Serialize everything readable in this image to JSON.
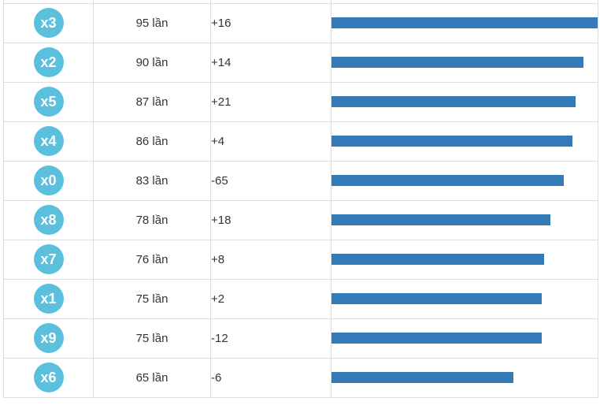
{
  "colors": {
    "badge": "#5bc0de",
    "bar": "#337ab7",
    "border": "#dddddd",
    "text": "#333333",
    "page_background": "#ffffff"
  },
  "table": {
    "max_count": 95,
    "count_unit": "lần",
    "rows": [
      {
        "label": "x3",
        "count": 95,
        "count_label": "95 lần",
        "change": "+16"
      },
      {
        "label": "x2",
        "count": 90,
        "count_label": "90 lần",
        "change": "+14"
      },
      {
        "label": "x5",
        "count": 87,
        "count_label": "87 lần",
        "change": "+21"
      },
      {
        "label": "x4",
        "count": 86,
        "count_label": "86 lần",
        "change": "+4"
      },
      {
        "label": "x0",
        "count": 83,
        "count_label": "83 lần",
        "change": "-65"
      },
      {
        "label": "x8",
        "count": 78,
        "count_label": "78 lần",
        "change": "+18"
      },
      {
        "label": "x7",
        "count": 76,
        "count_label": "76 lần",
        "change": "+8"
      },
      {
        "label": "x1",
        "count": 75,
        "count_label": "75 lần",
        "change": "+2"
      },
      {
        "label": "x9",
        "count": 75,
        "count_label": "75 lần",
        "change": "-12"
      },
      {
        "label": "x6",
        "count": 65,
        "count_label": "65 lần",
        "change": "-6"
      }
    ]
  },
  "chart_data": {
    "type": "bar",
    "orientation": "horizontal",
    "categories": [
      "x3",
      "x2",
      "x5",
      "x4",
      "x0",
      "x8",
      "x7",
      "x1",
      "x9",
      "x6"
    ],
    "series": [
      {
        "name": "frequency (lần)",
        "values": [
          95,
          90,
          87,
          86,
          83,
          78,
          76,
          75,
          75,
          65
        ]
      },
      {
        "name": "change",
        "values": [
          16,
          14,
          21,
          4,
          -65,
          18,
          8,
          2,
          -12,
          -6
        ]
      }
    ],
    "value_labels": [
      "95 lần",
      "90 lần",
      "87 lần",
      "86 lần",
      "83 lần",
      "78 lần",
      "76 lần",
      "75 lần",
      "75 lần",
      "65 lần"
    ],
    "change_labels": [
      "+16",
      "+14",
      "+21",
      "+4",
      "-65",
      "+18",
      "+8",
      "+2",
      "-12",
      "-6"
    ],
    "xlim": [
      0,
      95
    ],
    "bar_color": "#337ab7",
    "grid": false,
    "legend": "none"
  }
}
